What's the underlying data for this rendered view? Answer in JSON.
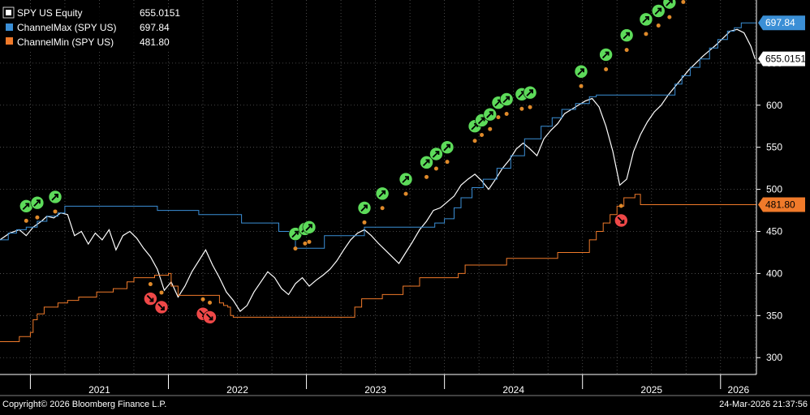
{
  "legend": {
    "items": [
      {
        "label": "SPY US Equity",
        "value": "655.0151",
        "color": "#ffffff"
      },
      {
        "label": "ChannelMax (SPY US)",
        "value": "697.84",
        "color": "#3b8fd6"
      },
      {
        "label": "ChannelMin (SPY US)",
        "value": "481.80",
        "color": "#f07a2a"
      }
    ]
  },
  "badges": [
    {
      "text": "697.84",
      "bg": "#3b8fd6",
      "fg": "#ffffff",
      "value": 697.84
    },
    {
      "text": "655.0151",
      "bg": "#ffffff",
      "fg": "#000000",
      "value": 655.0151
    },
    {
      "text": "481.80",
      "bg": "#f07a2a",
      "fg": "#000000",
      "value": 481.8
    }
  ],
  "footer": {
    "copyright": "Copyright© 2026 Bloomberg Finance L.P.",
    "timestamp": "24-Mar-2026 21:37:56"
  },
  "chart_data": {
    "type": "line",
    "x_ticks": [
      {
        "label": "2021",
        "t": 2021.0
      },
      {
        "label": "2022",
        "t": 2022.0
      },
      {
        "label": "2023",
        "t": 2023.0
      },
      {
        "label": "2024",
        "t": 2024.0
      },
      {
        "label": "2025",
        "t": 2025.0
      },
      {
        "label": "2026",
        "t": 2026.0
      }
    ],
    "y_ticks": [
      300,
      350,
      400,
      450,
      500,
      550,
      600,
      650
    ],
    "ylim": [
      280,
      725
    ],
    "xlim": [
      2020.78,
      2026.26
    ],
    "series": [
      {
        "name": "SPY US Equity",
        "color": "#ffffff",
        "points": [
          [
            2020.78,
            440
          ],
          [
            2020.85,
            448
          ],
          [
            2020.92,
            452
          ],
          [
            2020.97,
            445
          ],
          [
            2021.02,
            455
          ],
          [
            2021.08,
            462
          ],
          [
            2021.12,
            468
          ],
          [
            2021.17,
            466
          ],
          [
            2021.22,
            472
          ],
          [
            2021.27,
            470
          ],
          [
            2021.32,
            445
          ],
          [
            2021.37,
            450
          ],
          [
            2021.42,
            435
          ],
          [
            2021.47,
            448
          ],
          [
            2021.52,
            440
          ],
          [
            2021.57,
            452
          ],
          [
            2021.62,
            428
          ],
          [
            2021.67,
            445
          ],
          [
            2021.72,
            450
          ],
          [
            2021.77,
            442
          ],
          [
            2021.82,
            430
          ],
          [
            2021.87,
            420
          ],
          [
            2021.92,
            405
          ],
          [
            2021.97,
            380
          ],
          [
            2022.02,
            390
          ],
          [
            2022.07,
            372
          ],
          [
            2022.12,
            385
          ],
          [
            2022.17,
            402
          ],
          [
            2022.22,
            415
          ],
          [
            2022.27,
            428
          ],
          [
            2022.32,
            410
          ],
          [
            2022.37,
            395
          ],
          [
            2022.42,
            378
          ],
          [
            2022.47,
            368
          ],
          [
            2022.52,
            355
          ],
          [
            2022.57,
            362
          ],
          [
            2022.62,
            378
          ],
          [
            2022.67,
            390
          ],
          [
            2022.72,
            402
          ],
          [
            2022.77,
            395
          ],
          [
            2022.82,
            382
          ],
          [
            2022.87,
            375
          ],
          [
            2022.92,
            388
          ],
          [
            2022.97,
            395
          ],
          [
            2023.02,
            385
          ],
          [
            2023.07,
            392
          ],
          [
            2023.12,
            398
          ],
          [
            2023.17,
            405
          ],
          [
            2023.22,
            415
          ],
          [
            2023.27,
            428
          ],
          [
            2023.32,
            440
          ],
          [
            2023.37,
            448
          ],
          [
            2023.42,
            452
          ],
          [
            2023.47,
            445
          ],
          [
            2023.52,
            436
          ],
          [
            2023.57,
            428
          ],
          [
            2023.62,
            420
          ],
          [
            2023.67,
            412
          ],
          [
            2023.72,
            425
          ],
          [
            2023.77,
            438
          ],
          [
            2023.82,
            452
          ],
          [
            2023.87,
            462
          ],
          [
            2023.92,
            475
          ],
          [
            2023.97,
            478
          ],
          [
            2024.02,
            485
          ],
          [
            2024.07,
            492
          ],
          [
            2024.12,
            505
          ],
          [
            2024.17,
            512
          ],
          [
            2024.22,
            518
          ],
          [
            2024.27,
            510
          ],
          [
            2024.32,
            500
          ],
          [
            2024.37,
            512
          ],
          [
            2024.42,
            525
          ],
          [
            2024.47,
            535
          ],
          [
            2024.52,
            548
          ],
          [
            2024.57,
            555
          ],
          [
            2024.62,
            548
          ],
          [
            2024.67,
            540
          ],
          [
            2024.72,
            560
          ],
          [
            2024.77,
            570
          ],
          [
            2024.82,
            578
          ],
          [
            2024.87,
            590
          ],
          [
            2024.92,
            595
          ],
          [
            2024.97,
            600
          ],
          [
            2025.02,
            605
          ],
          [
            2025.07,
            608
          ],
          [
            2025.12,
            598
          ],
          [
            2025.17,
            575
          ],
          [
            2025.22,
            545
          ],
          [
            2025.27,
            505
          ],
          [
            2025.32,
            512
          ],
          [
            2025.37,
            545
          ],
          [
            2025.42,
            565
          ],
          [
            2025.47,
            580
          ],
          [
            2025.52,
            592
          ],
          [
            2025.57,
            600
          ],
          [
            2025.62,
            612
          ],
          [
            2025.67,
            622
          ],
          [
            2025.72,
            632
          ],
          [
            2025.77,
            642
          ],
          [
            2025.82,
            650
          ],
          [
            2025.87,
            658
          ],
          [
            2025.92,
            665
          ],
          [
            2025.97,
            672
          ],
          [
            2026.02,
            680
          ],
          [
            2026.07,
            688
          ],
          [
            2026.12,
            690
          ],
          [
            2026.17,
            686
          ],
          [
            2026.22,
            670
          ],
          [
            2026.25,
            655
          ]
        ]
      },
      {
        "name": "ChannelMax (SPY US)",
        "color": "#3b8fd6",
        "step": true,
        "points": [
          [
            2020.78,
            440
          ],
          [
            2020.84,
            448
          ],
          [
            2020.9,
            452
          ],
          [
            2020.97,
            455
          ],
          [
            2021.05,
            462
          ],
          [
            2021.12,
            468
          ],
          [
            2021.2,
            472
          ],
          [
            2021.25,
            480
          ],
          [
            2021.9,
            480
          ],
          [
            2021.92,
            475
          ],
          [
            2022.2,
            475
          ],
          [
            2022.22,
            470
          ],
          [
            2022.5,
            470
          ],
          [
            2022.53,
            460
          ],
          [
            2022.78,
            460
          ],
          [
            2022.8,
            450
          ],
          [
            2022.9,
            450
          ],
          [
            2022.92,
            430
          ],
          [
            2023.12,
            430
          ],
          [
            2023.13,
            445
          ],
          [
            2023.4,
            445
          ],
          [
            2023.42,
            455
          ],
          [
            2023.92,
            455
          ],
          [
            2023.93,
            460
          ],
          [
            2024.0,
            465
          ],
          [
            2024.07,
            478
          ],
          [
            2024.12,
            490
          ],
          [
            2024.2,
            502
          ],
          [
            2024.28,
            512
          ],
          [
            2024.38,
            525
          ],
          [
            2024.48,
            540
          ],
          [
            2024.58,
            560
          ],
          [
            2024.7,
            575
          ],
          [
            2024.78,
            585
          ],
          [
            2024.85,
            595
          ],
          [
            2024.95,
            602
          ],
          [
            2025.05,
            610
          ],
          [
            2025.1,
            612
          ],
          [
            2025.62,
            612
          ],
          [
            2025.67,
            625
          ],
          [
            2025.72,
            635
          ],
          [
            2025.78,
            645
          ],
          [
            2025.85,
            655
          ],
          [
            2025.92,
            668
          ],
          [
            2025.98,
            678
          ],
          [
            2026.05,
            688
          ],
          [
            2026.1,
            692
          ],
          [
            2026.15,
            697.84
          ],
          [
            2026.26,
            697.84
          ]
        ]
      },
      {
        "name": "ChannelMin (SPY US)",
        "color": "#f07a2a",
        "step": true,
        "points": [
          [
            2020.78,
            319
          ],
          [
            2020.9,
            319
          ],
          [
            2020.92,
            325
          ],
          [
            2021.0,
            330
          ],
          [
            2021.02,
            345
          ],
          [
            2021.05,
            352
          ],
          [
            2021.1,
            360
          ],
          [
            2021.2,
            365
          ],
          [
            2021.27,
            368
          ],
          [
            2021.35,
            372
          ],
          [
            2021.48,
            378
          ],
          [
            2021.6,
            382
          ],
          [
            2021.7,
            390
          ],
          [
            2021.75,
            395
          ],
          [
            2021.9,
            398
          ],
          [
            2022.0,
            400
          ],
          [
            2022.02,
            385
          ],
          [
            2022.07,
            374
          ],
          [
            2022.35,
            374
          ],
          [
            2022.37,
            365
          ],
          [
            2022.4,
            362
          ],
          [
            2022.43,
            360
          ],
          [
            2022.45,
            350
          ],
          [
            2022.47,
            348
          ],
          [
            2023.32,
            348
          ],
          [
            2023.35,
            360
          ],
          [
            2023.4,
            370
          ],
          [
            2023.55,
            375
          ],
          [
            2023.7,
            385
          ],
          [
            2023.82,
            395
          ],
          [
            2024.1,
            400
          ],
          [
            2024.15,
            410
          ],
          [
            2024.4,
            410
          ],
          [
            2024.45,
            418
          ],
          [
            2024.8,
            418
          ],
          [
            2024.82,
            425
          ],
          [
            2025.02,
            425
          ],
          [
            2025.05,
            440
          ],
          [
            2025.1,
            450
          ],
          [
            2025.15,
            460
          ],
          [
            2025.2,
            470
          ],
          [
            2025.25,
            480
          ],
          [
            2025.3,
            490
          ],
          [
            2025.38,
            494
          ],
          [
            2025.4,
            494
          ],
          [
            2025.42,
            481.8
          ],
          [
            2026.26,
            481.8
          ]
        ]
      }
    ],
    "buy_signals": [
      [
        2020.97,
        480
      ],
      [
        2021.05,
        484
      ],
      [
        2021.18,
        491
      ],
      [
        2022.92,
        447
      ],
      [
        2022.99,
        453
      ],
      [
        2023.02,
        455
      ],
      [
        2023.42,
        478
      ],
      [
        2023.55,
        495
      ],
      [
        2023.72,
        512
      ],
      [
        2023.87,
        532
      ],
      [
        2023.94,
        542
      ],
      [
        2024.02,
        550
      ],
      [
        2024.22,
        575
      ],
      [
        2024.27,
        582
      ],
      [
        2024.33,
        589
      ],
      [
        2024.39,
        603
      ],
      [
        2024.45,
        607
      ],
      [
        2024.56,
        613
      ],
      [
        2024.62,
        615
      ],
      [
        2024.99,
        640
      ],
      [
        2025.17,
        660
      ],
      [
        2025.32,
        683
      ],
      [
        2025.46,
        702
      ],
      [
        2025.55,
        712
      ],
      [
        2025.63,
        722
      ],
      [
        2025.73,
        740
      ],
      [
        2025.81,
        748
      ],
      [
        2025.87,
        753
      ]
    ],
    "sell_signals": [
      [
        2021.87,
        370
      ],
      [
        2021.95,
        360
      ],
      [
        2022.25,
        352
      ],
      [
        2022.3,
        348
      ],
      [
        2025.28,
        463
      ]
    ]
  }
}
